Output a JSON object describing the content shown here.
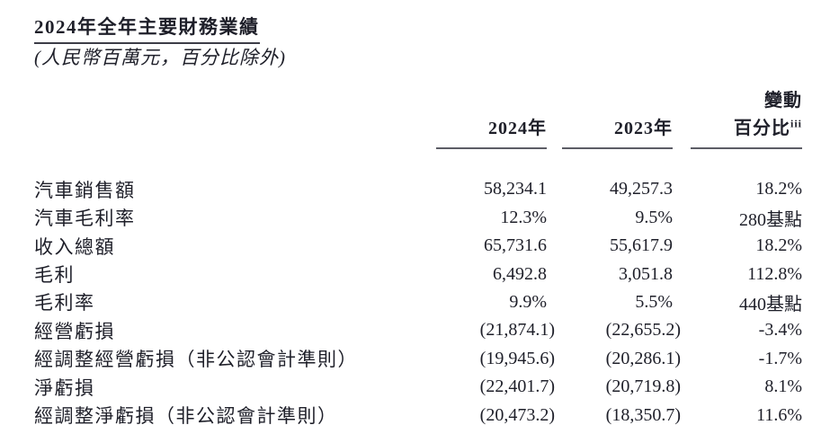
{
  "page": {
    "title": "2024年全年主要財務業績",
    "subtitle": "(人民幣百萬元，百分比除外)"
  },
  "table": {
    "header": {
      "col_2024": "2024年",
      "col_2023": "2023年",
      "change_line1": "變動",
      "change_line2": "百分比",
      "change_superscript": "iii"
    },
    "rows": [
      {
        "label": "汽車銷售額",
        "y2024": "58,234.1",
        "y2023": "49,257.3",
        "change": "18.2%"
      },
      {
        "label": "汽車毛利率",
        "y2024": "12.3%",
        "y2023": "9.5%",
        "change": "280基點"
      },
      {
        "label": "收入總額",
        "y2024": "65,731.6",
        "y2023": "55,617.9",
        "change": "18.2%"
      },
      {
        "label": "毛利",
        "y2024": "6,492.8",
        "y2023": "3,051.8",
        "change": "112.8%"
      },
      {
        "label": "毛利率",
        "y2024": "9.9%",
        "y2023": "5.5%",
        "change": "440基點"
      },
      {
        "label": "經營虧損",
        "y2024": "(21,874.1)",
        "y2023": "(22,655.2)",
        "change": "-3.4%"
      },
      {
        "label": "經調整經營虧損（非公認會計準則）",
        "y2024": "(19,945.6)",
        "y2023": "(20,286.1)",
        "change": "-1.7%"
      },
      {
        "label": "淨虧損",
        "y2024": "(22,401.7)",
        "y2023": "(20,719.8)",
        "change": "8.1%"
      },
      {
        "label": "經調整淨虧損（非公認會計準則）",
        "y2024": "(20,473.2)",
        "y2023": "(18,350.7)",
        "change": "11.6%"
      }
    ]
  },
  "colors": {
    "text": "#1e1f29",
    "rule": "#5c5d66",
    "title-rule": "#3c3d47"
  }
}
